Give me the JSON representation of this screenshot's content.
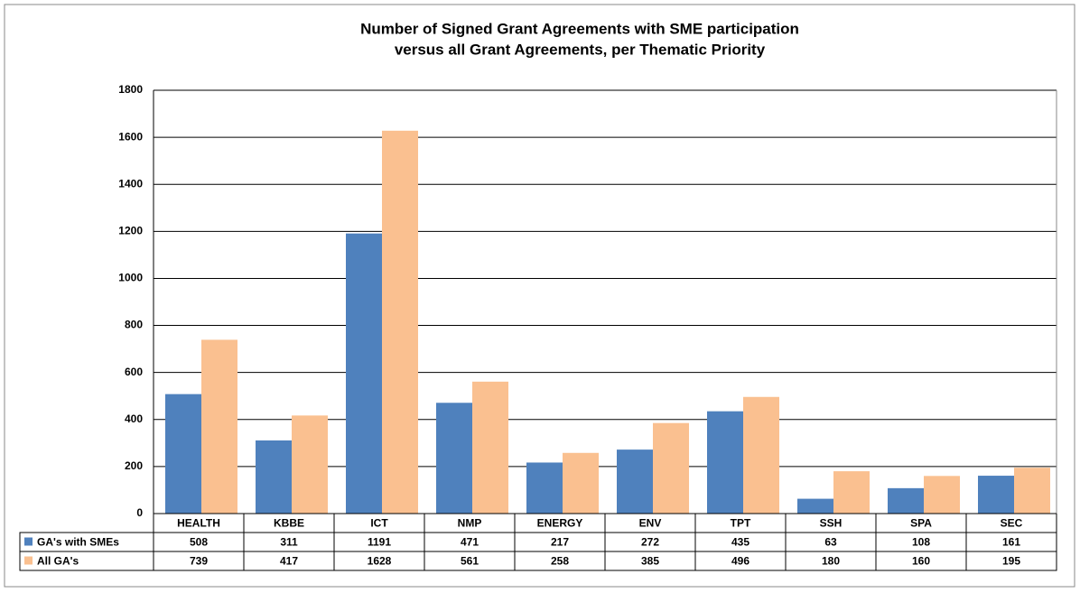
{
  "chart_data": {
    "type": "bar",
    "title": [
      "Number of Signed Grant Agreements with SME participation",
      "versus all Grant Agreements, per Thematic Priority"
    ],
    "categories": [
      "HEALTH",
      "KBBE",
      "ICT",
      "NMP",
      "ENERGY",
      "ENV",
      "TPT",
      "SSH",
      "SPA",
      "SEC"
    ],
    "series": [
      {
        "name": "GA's with SMEs",
        "color": "#4f81bd",
        "values": [
          508,
          311,
          1191,
          471,
          217,
          272,
          435,
          63,
          108,
          161
        ]
      },
      {
        "name": "All GA's",
        "color": "#fac090",
        "values": [
          739,
          417,
          1628,
          561,
          258,
          385,
          496,
          180,
          160,
          195
        ]
      }
    ],
    "ylim": [
      0,
      1800
    ],
    "yticks": [
      0,
      200,
      400,
      600,
      800,
      1000,
      1200,
      1400,
      1600,
      1800
    ],
    "grid": true
  }
}
